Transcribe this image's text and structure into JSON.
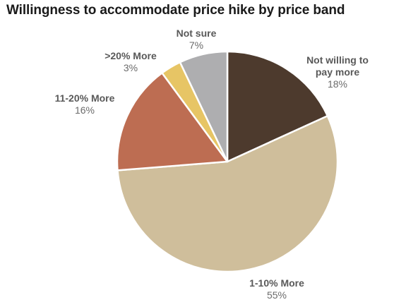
{
  "chart_data": {
    "type": "pie",
    "title": "Willingness to accommodate price hike by price band",
    "slices": [
      {
        "name": "Not willing to pay more",
        "value": 18,
        "display_value": "18%",
        "color": "#4d3a2d"
      },
      {
        "name": "1-10% More",
        "value": 55,
        "display_value": "55%",
        "color": "#cfbe9b"
      },
      {
        "name": "11-20% More",
        "value": 16,
        "display_value": "16%",
        "color": "#bd6d52"
      },
      {
        "name": ">20% More",
        "value": 3,
        "display_value": "3%",
        "color": "#e7c565"
      },
      {
        "name": "Not sure",
        "value": 7,
        "display_value": "7%",
        "color": "#aeaeb0"
      }
    ],
    "start": "12 o'clock",
    "direction": "clockwise",
    "legend": "none"
  }
}
